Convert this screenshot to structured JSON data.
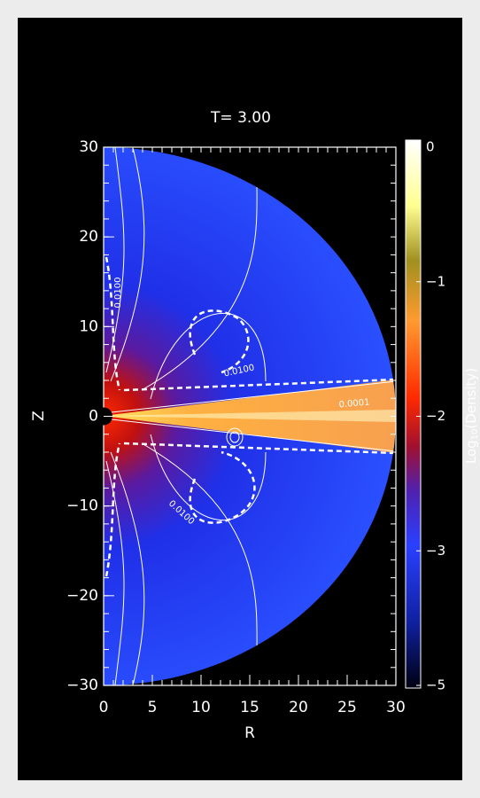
{
  "chart_data": {
    "type": "field-map",
    "title": "T=  3.00",
    "xlabel": "R",
    "ylabel": "Z",
    "xlim": [
      0,
      30
    ],
    "ylim": [
      -30,
      30
    ],
    "xticks": [
      0,
      5,
      10,
      15,
      20,
      25,
      30
    ],
    "yticks": [
      {
        "value": -30,
        "label": "−30"
      },
      {
        "value": -20,
        "label": "−20"
      },
      {
        "value": -10,
        "label": "−10"
      },
      0,
      10,
      20,
      30
    ],
    "colorbar": {
      "label": {
        "base": "Log",
        "sub": "10",
        "rest": "(Density)"
      },
      "ticks": [
        0,
        {
          "value": -1,
          "label": "−1"
        },
        {
          "value": -2,
          "label": "−2"
        },
        {
          "value": -3,
          "label": "−3"
        },
        {
          "value": -5,
          "label": "−5"
        }
      ]
    },
    "annotations": [
      "0.0100",
      "0.0100",
      "0.0100",
      "0.0001"
    ]
  }
}
